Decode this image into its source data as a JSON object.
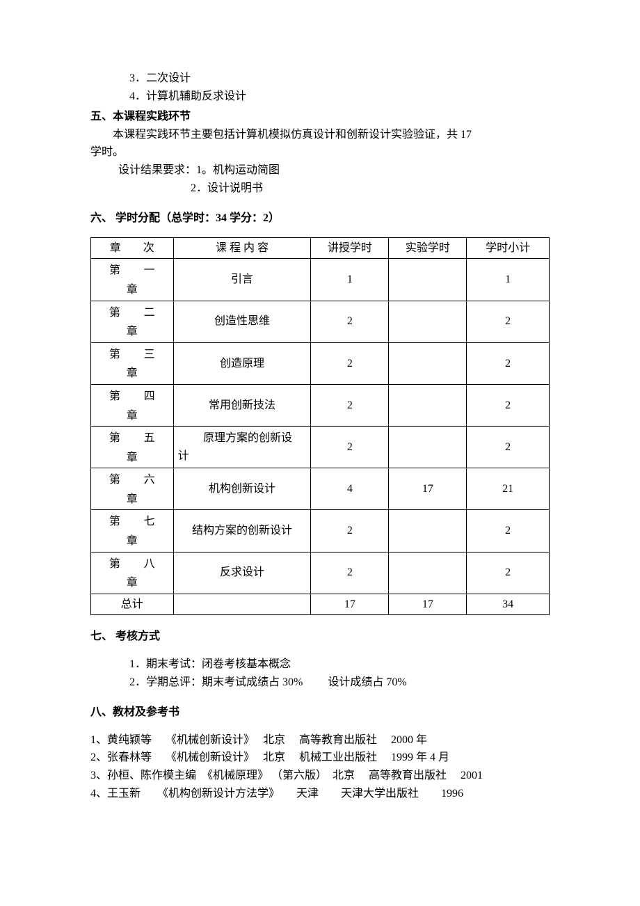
{
  "intro": {
    "item3": "3．二次设计",
    "item4": "4．计算机辅助反求设计"
  },
  "section5": {
    "heading": "五、本课程实践环节",
    "body1": "本课程实践环节主要包括计算机模拟仿真设计和创新设计实验验证，共 17",
    "body2": "学时。",
    "req1": "设计结果要求：1。机构运动简图",
    "req2": "2．设计说明书"
  },
  "section6": {
    "heading": "六、 学时分配（总学时：34   学分：2）",
    "table": {
      "headers": {
        "chapter": "章　　次",
        "content": "课 程 内 容",
        "lecture": "讲授学时",
        "lab": "实验学时",
        "subtotal": "学时小计"
      },
      "rows": [
        {
          "chapter": "第　　一章",
          "content": "引言",
          "lecture": "1",
          "lab": "",
          "subtotal": "1"
        },
        {
          "chapter": "第　　二章",
          "content": "创造性思维",
          "lecture": "2",
          "lab": "",
          "subtotal": "2"
        },
        {
          "chapter": "第　　三章",
          "content": "创造原理",
          "lecture": "2",
          "lab": "",
          "subtotal": "2"
        },
        {
          "chapter": "第　　四章",
          "content": "常用创新技法",
          "lecture": "2",
          "lab": "",
          "subtotal": "2"
        },
        {
          "chapter": "第　　五章",
          "content": "原理方案的创新设计",
          "content_aligned": "left",
          "lecture": "2",
          "lab": "",
          "subtotal": "2"
        },
        {
          "chapter": "第　　六章",
          "content": "机构创新设计",
          "lecture": "4",
          "lab": "17",
          "subtotal": "21"
        },
        {
          "chapter": "第　　七章",
          "content": "结构方案的创新设计",
          "lecture": "2",
          "lab": "",
          "subtotal": "2"
        },
        {
          "chapter": "第　　八章",
          "content": "反求设计",
          "lecture": "2",
          "lab": "",
          "subtotal": "2"
        },
        {
          "chapter": "总计",
          "chapter_center": true,
          "content": "",
          "lecture": "17",
          "lab": "17",
          "subtotal": "34"
        }
      ]
    }
  },
  "section7": {
    "heading": "七、 考核方式",
    "item1": "1．期末考试：闭卷考核基本概念",
    "item2": "2．学期总评：期末考试成绩占 30%　　 设计成绩占 70%"
  },
  "section8": {
    "heading": "八、教材及参考书",
    "refs": [
      "1、黄纯颖等　 《机械创新设计》　 北京　 高等教育出版社　 2000 年",
      "2、张春林等　 《机械创新设计》　 北京　 机械工业出版社　 1999 年 4 月",
      "3、孙桓、陈作模主编　《机械原理》 （第六版）　北京　 高等教育出版社　 2001",
      "4、王玉新　　《机构创新设计方法学》　　天津　　天津大学出版社　　1996"
    ]
  }
}
